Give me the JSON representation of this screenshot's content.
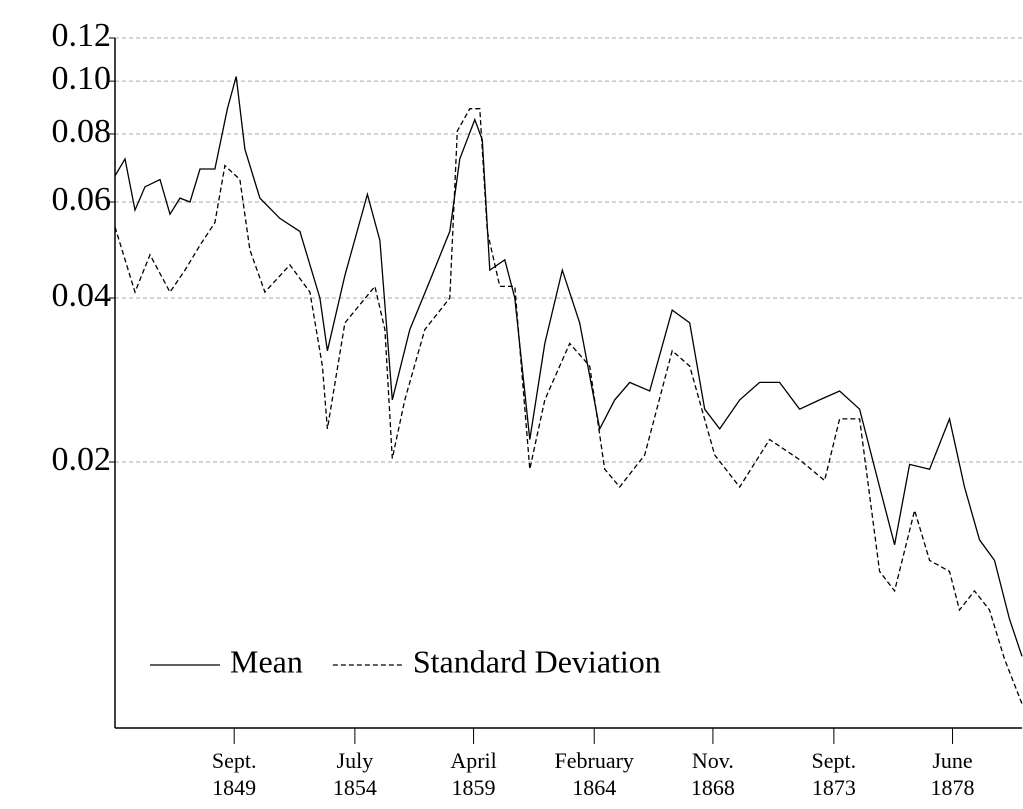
{
  "chart_data": {
    "type": "line",
    "log_y": true,
    "grid": true,
    "legend": "lower left",
    "xlim": [
      1844.9,
      1881.2
    ],
    "ylim": [
      0.0065,
      0.12
    ],
    "xticks": [
      {
        "value": 1849.67,
        "label": "Sept. 1849"
      },
      {
        "value": 1854.5,
        "label": "July 1854"
      },
      {
        "value": 1859.25,
        "label": "April 1859"
      },
      {
        "value": 1864.08,
        "label": "February 1864"
      },
      {
        "value": 1868.83,
        "label": "Nov. 1868"
      },
      {
        "value": 1873.67,
        "label": "Sept. 1873"
      },
      {
        "value": 1878.42,
        "label": "June 1878"
      }
    ],
    "yticks": [
      {
        "value": 0.02,
        "label": "0.02"
      },
      {
        "value": 0.04,
        "label": "0.04"
      },
      {
        "value": 0.06,
        "label": "0.06"
      },
      {
        "value": 0.08,
        "label": "0.08"
      },
      {
        "value": 0.1,
        "label": "0.10"
      },
      {
        "value": 0.12,
        "label": "0.12"
      }
    ],
    "series": [
      {
        "name": "Mean",
        "color": "#000000",
        "dash": "solid",
        "x": [
          1844.9,
          1845.3,
          1845.7,
          1846.1,
          1846.7,
          1847.1,
          1847.5,
          1847.9,
          1848.3,
          1848.9,
          1849.4,
          1849.75,
          1850.1,
          1850.7,
          1851.5,
          1852.3,
          1853.1,
          1853.4,
          1854.1,
          1855.0,
          1855.5,
          1856.0,
          1856.7,
          1857.5,
          1858.3,
          1858.7,
          1859.3,
          1859.6,
          1859.9,
          1860.5,
          1860.9,
          1861.5,
          1862.1,
          1862.8,
          1863.5,
          1864.3,
          1864.9,
          1865.5,
          1866.3,
          1867.2,
          1867.9,
          1868.5,
          1869.1,
          1869.9,
          1870.7,
          1871.5,
          1872.3,
          1873.1,
          1873.9,
          1874.7,
          1875.5,
          1876.1,
          1876.7,
          1877.5,
          1878.3,
          1878.9,
          1879.5,
          1880.1,
          1880.7,
          1881.2
        ],
        "values": [
          0.067,
          0.072,
          0.058,
          0.064,
          0.066,
          0.057,
          0.061,
          0.06,
          0.069,
          0.069,
          0.089,
          0.102,
          0.075,
          0.061,
          0.056,
          0.053,
          0.04,
          0.032,
          0.044,
          0.062,
          0.051,
          0.026,
          0.035,
          0.043,
          0.053,
          0.072,
          0.085,
          0.078,
          0.045,
          0.047,
          0.04,
          0.022,
          0.033,
          0.045,
          0.036,
          0.023,
          0.026,
          0.028,
          0.027,
          0.038,
          0.036,
          0.025,
          0.023,
          0.026,
          0.028,
          0.028,
          0.025,
          0.026,
          0.027,
          0.025,
          0.018,
          0.0141,
          0.0198,
          0.0194,
          0.024,
          0.018,
          0.0144,
          0.0132,
          0.0103,
          0.0088
        ]
      },
      {
        "name": "Standard Deviation",
        "color": "#000000",
        "dash": "dashed",
        "x": [
          1844.9,
          1845.7,
          1846.3,
          1847.1,
          1847.7,
          1848.3,
          1848.9,
          1849.3,
          1849.9,
          1850.3,
          1850.9,
          1851.9,
          1852.7,
          1853.2,
          1853.4,
          1854.1,
          1855.3,
          1855.7,
          1856.0,
          1856.5,
          1857.3,
          1858.3,
          1858.6,
          1859.1,
          1859.5,
          1859.8,
          1860.3,
          1860.9,
          1861.5,
          1862.1,
          1863.1,
          1863.9,
          1864.5,
          1865.1,
          1866.1,
          1867.2,
          1867.9,
          1868.9,
          1869.9,
          1871.1,
          1872.3,
          1873.3,
          1873.9,
          1874.7,
          1875.5,
          1876.1,
          1876.9,
          1877.5,
          1878.3,
          1878.7,
          1879.3,
          1879.9,
          1880.5,
          1881.2
        ],
        "values": [
          0.054,
          0.041,
          0.048,
          0.041,
          0.045,
          0.05,
          0.055,
          0.07,
          0.066,
          0.049,
          0.041,
          0.046,
          0.041,
          0.03,
          0.023,
          0.036,
          0.042,
          0.035,
          0.0203,
          0.026,
          0.035,
          0.04,
          0.081,
          0.089,
          0.089,
          0.053,
          0.042,
          0.042,
          0.0194,
          0.026,
          0.033,
          0.03,
          0.0194,
          0.018,
          0.0206,
          0.032,
          0.03,
          0.0206,
          0.018,
          0.022,
          0.0202,
          0.0185,
          0.024,
          0.024,
          0.0126,
          0.0116,
          0.0163,
          0.0132,
          0.0126,
          0.0107,
          0.0116,
          0.0107,
          0.0087,
          0.0072
        ]
      }
    ]
  }
}
